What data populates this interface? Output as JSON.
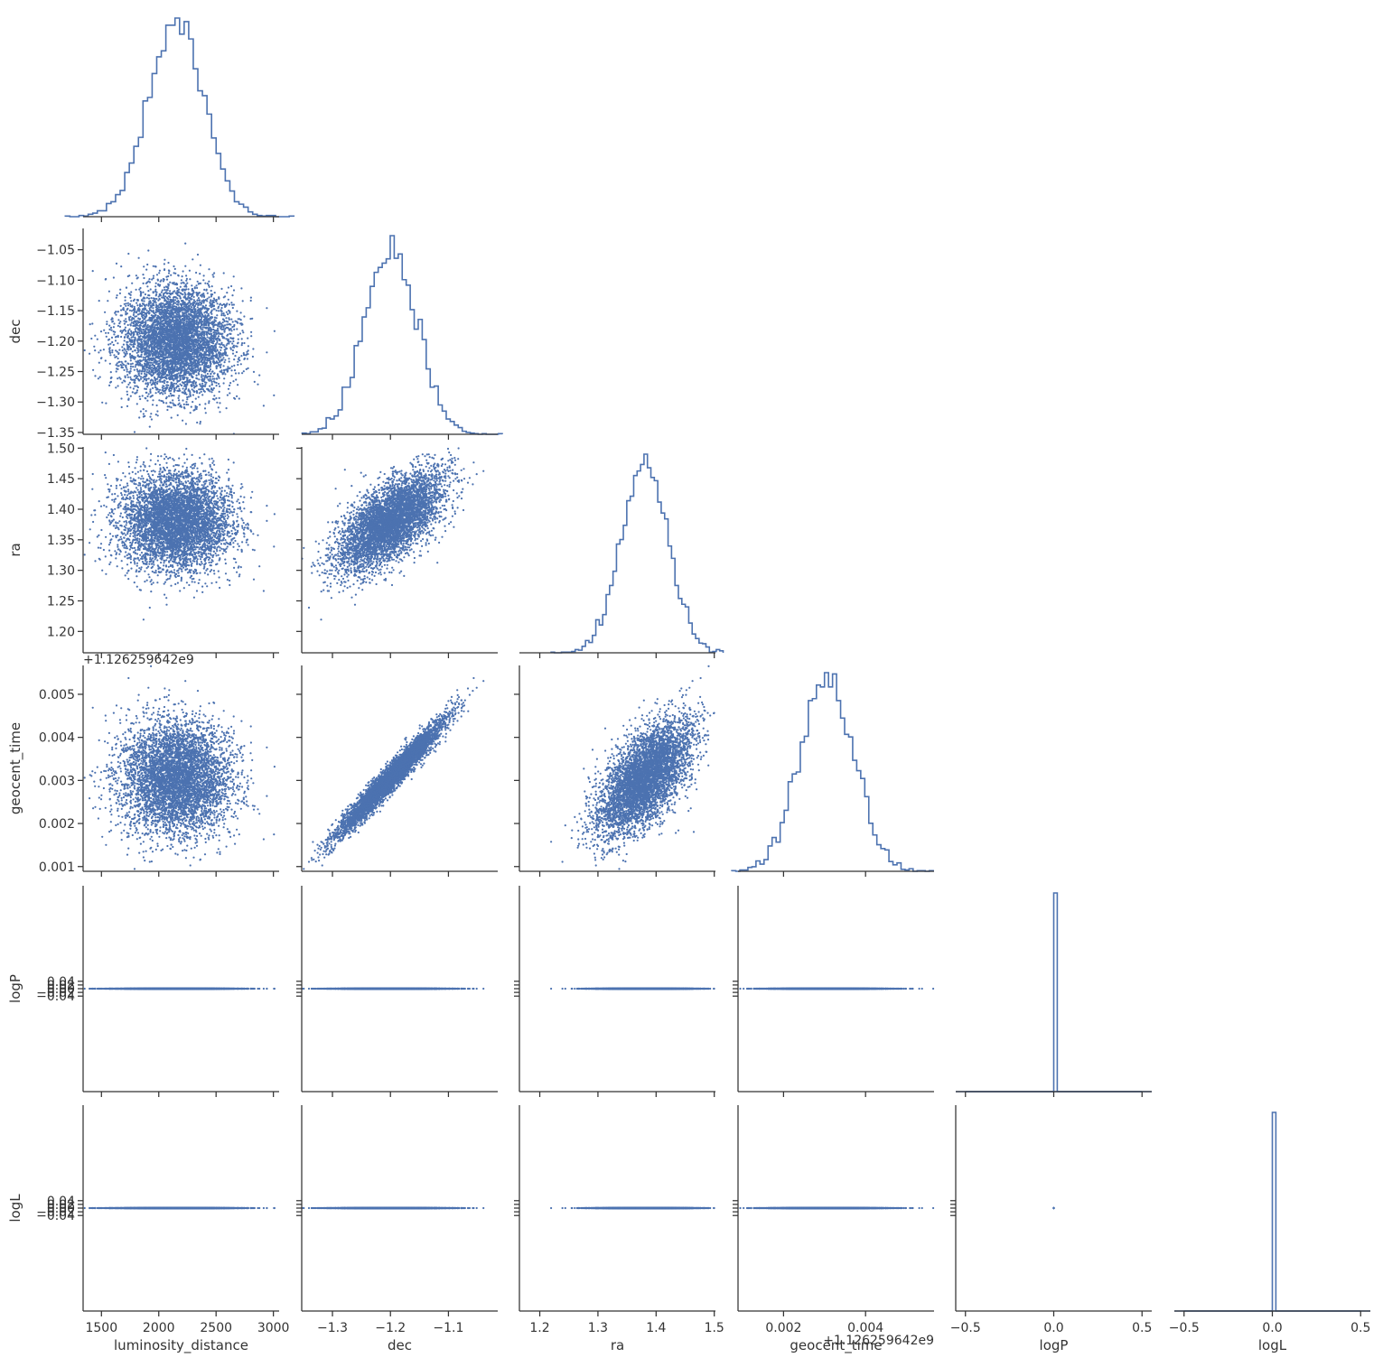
{
  "chart_data": {
    "type": "corner-pairplot",
    "parameters": [
      "luminosity_distance",
      "dec",
      "ra",
      "geocent_time",
      "logP",
      "logL"
    ],
    "axis_labels": {
      "luminosity_distance": "luminosity_distance",
      "dec": "dec",
      "ra": "ra",
      "geocent_time": "geocent_time",
      "logP": "logP",
      "logL": "logL"
    },
    "offset_text": "+1.126259642e9",
    "ranges": {
      "luminosity_distance": [
        1340,
        3050
      ],
      "dec": [
        -1.353,
        -1.015
      ],
      "ra": [
        1.165,
        1.502
      ],
      "geocent_time": [
        0.00089,
        0.00567
      ],
      "logP": [
        -0.555,
        0.555
      ],
      "logL": [
        -0.555,
        0.555
      ]
    },
    "ticks": {
      "luminosity_distance": [
        1500,
        2000,
        2500,
        3000
      ],
      "dec": [
        -1.3,
        -1.2,
        -1.1
      ],
      "ra": [
        1.2,
        1.3,
        1.4,
        1.5
      ],
      "geocent_time": [
        0.002,
        0.004
      ],
      "logP": [
        -0.5,
        0.0,
        0.5
      ],
      "logL": [
        -0.5,
        0.0,
        0.5
      ]
    },
    "y_ticks": {
      "dec": [
        -1.35,
        -1.3,
        -1.25,
        -1.2,
        -1.15,
        -1.1,
        -1.05
      ],
      "ra": [
        1.2,
        1.25,
        1.3,
        1.35,
        1.4,
        1.45,
        1.5
      ],
      "geocent_time": [
        0.001,
        0.002,
        0.003,
        0.004,
        0.005
      ],
      "logP": [
        -0.04,
        -0.02,
        0.0,
        0.02,
        0.04
      ],
      "logL": [
        -0.04,
        -0.02,
        0.0,
        0.02,
        0.04
      ]
    },
    "tick_labels": {
      "luminosity_distance": [
        "1500",
        "2000",
        "2500",
        "3000"
      ],
      "dec": [
        "−1.3",
        "−1.2",
        "−1.1"
      ],
      "ra": [
        "1.2",
        "1.3",
        "1.4",
        "1.5"
      ],
      "geocent_time": [
        "0.002",
        "0.004"
      ],
      "logP": [
        "−0.5",
        "0.0",
        "0.5"
      ],
      "logL": [
        "−0.5",
        "0.0",
        "0.5"
      ]
    },
    "y_tick_labels": {
      "dec": [
        "−1.35",
        "−1.30",
        "−1.25",
        "−1.20",
        "−1.15",
        "−1.10",
        "−1.05"
      ],
      "ra": [
        "1.20",
        "1.25",
        "1.30",
        "1.35",
        "1.40",
        "1.45",
        "1.50"
      ],
      "geocent_time": [
        "0.001",
        "0.002",
        "0.003",
        "0.004",
        "0.005"
      ],
      "logP": [
        "−0.04",
        "−0.02",
        "0.00",
        "0.02",
        "0.04"
      ],
      "logL": [
        "−0.04",
        "−0.02",
        "0.00",
        "0.02",
        "0.04"
      ]
    },
    "distributions": {
      "luminosity_distance": {
        "mean": 2150,
        "sd": 240
      },
      "dec": {
        "mean": -1.2,
        "sd": 0.045
      },
      "ra": {
        "mean": 1.38,
        "sd": 0.04
      },
      "geocent_time": {
        "mean": 0.00305,
        "sd": 0.00065
      },
      "logP": {
        "mean": 0,
        "sd": 0
      },
      "logL": {
        "mean": 0,
        "sd": 0
      }
    },
    "correlations": {
      "dec_geocent_time": 0.97,
      "dec_ra": 0.65,
      "ra_geocent_time": 0.6
    },
    "n_samples": 5000,
    "histogram_bins": 50,
    "grid": false,
    "legend": "none",
    "color": "#4c72b0"
  }
}
